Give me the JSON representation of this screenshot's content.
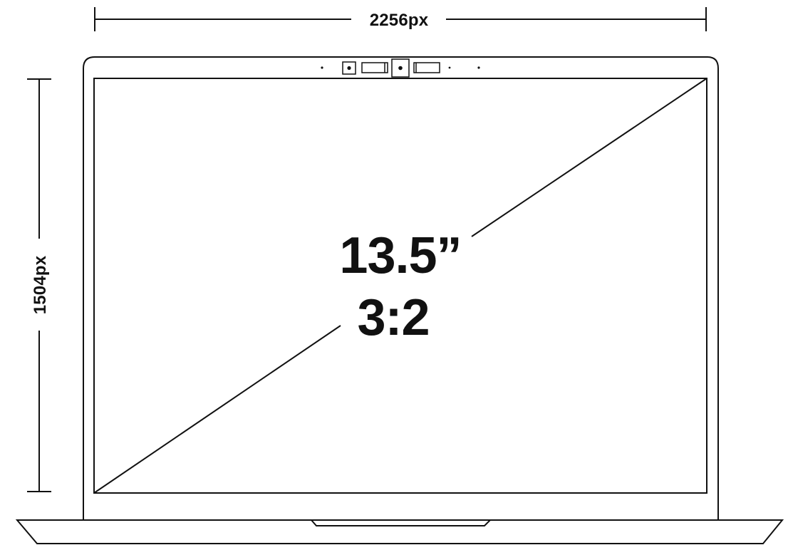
{
  "dimensions": {
    "width_label": "2256px",
    "height_label": "1504px"
  },
  "screen": {
    "size_label": "13.5”",
    "ratio_label": "3:2"
  },
  "colors": {
    "line": "#111111",
    "background": "#ffffff"
  }
}
